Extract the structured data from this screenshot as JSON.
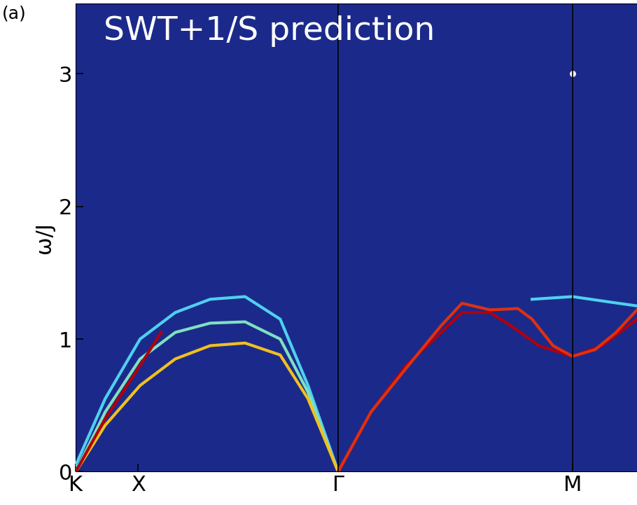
{
  "chart_data": {
    "type": "line",
    "title": "SWT+1/S prediction",
    "panel_label": "(a)",
    "y_label": "ω/J",
    "xlim": [
      0,
      2.139
    ],
    "ylim": [
      0,
      3.53
    ],
    "xticks": [
      {
        "value": 0,
        "label": "K"
      },
      {
        "value": 0.237,
        "label": "X"
      },
      {
        "value": 1.0,
        "label": "Γ"
      },
      {
        "value": 1.893,
        "label": "M"
      }
    ],
    "yticks": [
      0,
      1,
      2,
      3
    ],
    "grid": false,
    "series": [
      {
        "type": "line",
        "color": "#4fd0f0",
        "line_style": "solid",
        "x": [
          0,
          0.112,
          0.245,
          0.379,
          0.512,
          0.645,
          0.779,
          0.885,
          1.0
        ],
        "values": [
          0.05,
          0.55,
          1.0,
          1.2,
          1.3,
          1.32,
          1.15,
          0.65,
          0
        ]
      },
      {
        "type": "line",
        "color": "#7fe0c0",
        "line_style": "solid",
        "x": [
          0,
          0.112,
          0.245,
          0.379,
          0.512,
          0.645,
          0.779,
          0.885,
          1.0
        ],
        "values": [
          0,
          0.45,
          0.85,
          1.05,
          1.12,
          1.13,
          1.0,
          0.6,
          0
        ]
      },
      {
        "type": "line",
        "color": "#f0c020",
        "line_style": "solid",
        "x": [
          0,
          0.112,
          0.245,
          0.379,
          0.512,
          0.645,
          0.779,
          0.885,
          1.0
        ],
        "values": [
          0,
          0.35,
          0.65,
          0.85,
          0.95,
          0.97,
          0.88,
          0.55,
          0
        ]
      },
      {
        "type": "line",
        "color": "#b0000e",
        "line_style": "solid",
        "x": [
          0,
          0.112,
          0.245,
          0.325
        ],
        "values": [
          0,
          0.4,
          0.8,
          1.05
        ]
      },
      {
        "type": "line",
        "color": "#b0000e",
        "line_style": "solid",
        "x": [
          1.0,
          1.125,
          1.259,
          1.392,
          1.472,
          1.579,
          1.659,
          1.765,
          1.893,
          2.005,
          2.139
        ],
        "values": [
          0,
          0.45,
          0.8,
          1.05,
          1.2,
          1.2,
          1.1,
          0.95,
          0.87,
          0.95,
          1.15
        ]
      },
      {
        "type": "line",
        "color": "#e03010",
        "line_style": "solid",
        "x": [
          1.0,
          1.125,
          1.259,
          1.392,
          1.472,
          1.579,
          1.685,
          1.739,
          1.819,
          1.893,
          1.979,
          2.059,
          2.139
        ],
        "values": [
          0,
          0.45,
          0.78,
          1.1,
          1.27,
          1.22,
          1.23,
          1.15,
          0.95,
          0.87,
          0.92,
          1.05,
          1.22
        ]
      },
      {
        "type": "line",
        "color": "#4fd0f0",
        "line_style": "solid",
        "x": [
          1.739,
          1.893,
          2.032,
          2.139
        ],
        "values": [
          1.3,
          1.32,
          1.28,
          1.25
        ]
      },
      {
        "type": "scatter",
        "color": "#f0f0ff",
        "marker": "o",
        "x": [
          1.893
        ],
        "values": [
          3.0
        ]
      }
    ]
  }
}
